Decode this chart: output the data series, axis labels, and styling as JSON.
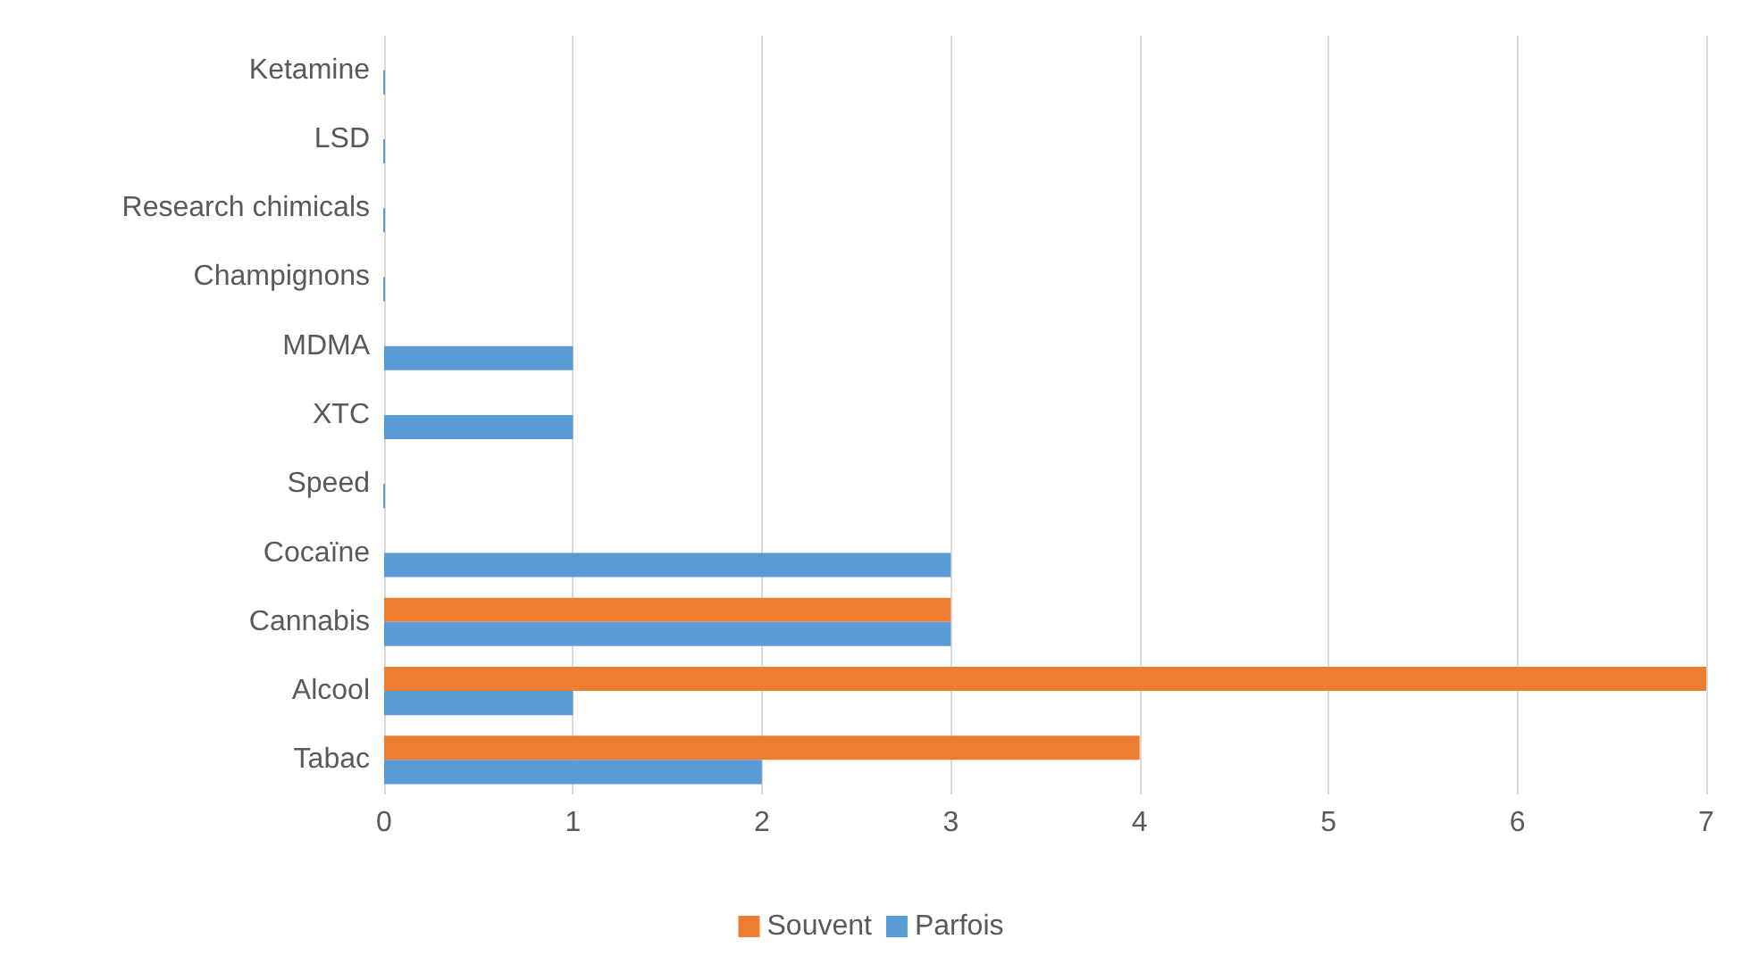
{
  "chart_data": {
    "type": "bar",
    "orientation": "horizontal",
    "categories": [
      "Ketamine",
      "LSD",
      "Research chimicals",
      "Champignons",
      "MDMA",
      "XTC",
      "Speed",
      "Cocaïne",
      "Cannabis",
      "Alcool",
      "Tabac"
    ],
    "series": [
      {
        "name": "Souvent",
        "color": "#ed7d31",
        "values": [
          null,
          null,
          null,
          null,
          null,
          null,
          null,
          null,
          3,
          7,
          4
        ]
      },
      {
        "name": "Parfois",
        "color": "#5b9bd5",
        "values": [
          0,
          0,
          0,
          0,
          1,
          1,
          0,
          3,
          3,
          1,
          2
        ]
      }
    ],
    "xlim": [
      0,
      7
    ],
    "xticks": [
      0,
      1,
      2,
      3,
      4,
      5,
      6,
      7
    ],
    "grid": "x",
    "legend": "bottom"
  }
}
